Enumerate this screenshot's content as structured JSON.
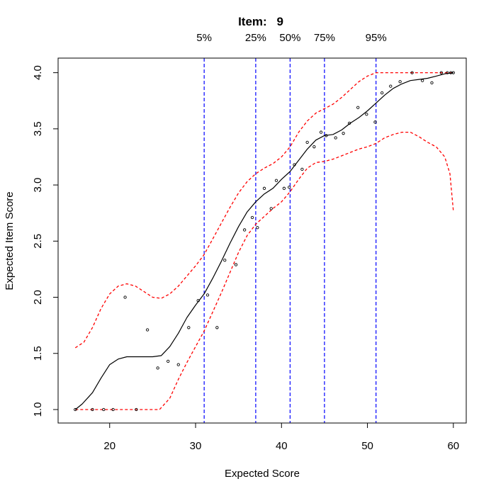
{
  "chart_data": {
    "type": "line",
    "title_prefix": "Item:",
    "title_value": "9",
    "xlabel": "Expected Score",
    "ylabel": "Expected Item Score",
    "xlim": [
      14.0,
      61.5
    ],
    "ylim": [
      0.88,
      4.13
    ],
    "x_ticks": [
      20,
      30,
      40,
      50,
      60
    ],
    "y_ticks": [
      1.0,
      1.5,
      2.0,
      2.5,
      3.0,
      3.5,
      4.0
    ],
    "y_tick_labels": [
      "1.0",
      "1.5",
      "2.0",
      "2.5",
      "3.0",
      "3.5",
      "4.0"
    ],
    "grid": false,
    "percentiles": [
      {
        "label": "5%",
        "x": 31
      },
      {
        "label": "25%",
        "x": 37
      },
      {
        "label": "50%",
        "x": 41
      },
      {
        "label": "75%",
        "x": 45
      },
      {
        "label": "95%",
        "x": 51
      }
    ],
    "colors": {
      "fit": "#000000",
      "band": "#ff0000",
      "percentile": "#0000ff",
      "points": "#000000"
    },
    "series": [
      {
        "role": "fit",
        "style": "solid",
        "x": [
          16,
          16.8,
          18,
          19,
          20,
          21,
          22,
          23,
          24,
          25,
          26,
          27,
          28,
          29,
          30,
          31,
          32,
          33,
          34,
          35,
          36,
          37,
          38,
          39,
          40,
          41,
          42,
          43,
          44,
          45,
          46,
          47,
          48,
          49,
          50,
          51,
          52,
          53,
          54,
          55,
          56,
          57,
          58,
          59,
          60
        ],
        "y": [
          1.0,
          1.05,
          1.15,
          1.28,
          1.4,
          1.45,
          1.47,
          1.47,
          1.47,
          1.47,
          1.48,
          1.56,
          1.68,
          1.82,
          1.93,
          2.03,
          2.17,
          2.32,
          2.48,
          2.63,
          2.76,
          2.85,
          2.92,
          2.97,
          3.05,
          3.12,
          3.22,
          3.32,
          3.4,
          3.44,
          3.45,
          3.49,
          3.55,
          3.6,
          3.66,
          3.73,
          3.8,
          3.86,
          3.9,
          3.93,
          3.94,
          3.95,
          3.97,
          3.99,
          4.0
        ]
      },
      {
        "role": "upper-band",
        "style": "dashed",
        "x": [
          16,
          17,
          18,
          19,
          20,
          21,
          22,
          23,
          24,
          25,
          26,
          27,
          28,
          29,
          30,
          31,
          32,
          33,
          34,
          35,
          36,
          37,
          38,
          39,
          40,
          41,
          42,
          43,
          44,
          45,
          46,
          47,
          48,
          49,
          50,
          51,
          52,
          53,
          54,
          55,
          56,
          57,
          58,
          59,
          60
        ],
        "y": [
          1.55,
          1.6,
          1.73,
          1.9,
          2.03,
          2.1,
          2.12,
          2.1,
          2.05,
          2.0,
          1.99,
          2.03,
          2.1,
          2.19,
          2.28,
          2.38,
          2.52,
          2.66,
          2.8,
          2.93,
          3.03,
          3.1,
          3.15,
          3.19,
          3.25,
          3.34,
          3.47,
          3.57,
          3.64,
          3.68,
          3.72,
          3.78,
          3.85,
          3.92,
          3.97,
          4.0,
          4.0,
          4.0,
          4.0,
          4.0,
          4.0,
          4.0,
          4.0,
          4.0,
          4.0
        ]
      },
      {
        "role": "lower-band",
        "style": "dashed",
        "x": [
          16,
          18,
          20,
          22,
          24,
          25.8,
          27,
          28,
          29,
          30,
          31,
          32,
          33,
          34,
          35,
          36,
          37,
          38,
          39,
          40,
          41,
          42,
          43,
          44,
          45,
          46,
          47,
          48,
          49,
          50,
          51,
          52,
          53,
          54,
          55,
          56,
          57,
          58,
          59,
          59.6,
          60
        ],
        "y": [
          1.0,
          1.0,
          1.0,
          1.0,
          1.0,
          1.0,
          1.1,
          1.27,
          1.42,
          1.56,
          1.7,
          1.87,
          2.04,
          2.22,
          2.4,
          2.55,
          2.65,
          2.72,
          2.79,
          2.85,
          2.94,
          3.05,
          3.15,
          3.2,
          3.21,
          3.23,
          3.26,
          3.29,
          3.32,
          3.34,
          3.37,
          3.42,
          3.45,
          3.47,
          3.47,
          3.43,
          3.38,
          3.34,
          3.25,
          3.1,
          2.77
        ]
      }
    ],
    "points": {
      "x": [
        16,
        18,
        19.3,
        20.4,
        21.8,
        23.1,
        24.4,
        25.6,
        26.8,
        28,
        29.2,
        30.3,
        31.4,
        32.5,
        33.4,
        34.7,
        35.7,
        36.6,
        37.2,
        38,
        38.8,
        39.4,
        40.3,
        40.9,
        41.5,
        42.4,
        43,
        43.8,
        44.6,
        45.2,
        46.3,
        47.2,
        47.9,
        48.9,
        49.9,
        50.9,
        51.7,
        52.7,
        53.8,
        55.2,
        56.4,
        57.5,
        58.6,
        59.3,
        59.7,
        60
      ],
      "y": [
        1.0,
        1.0,
        1.0,
        1.0,
        2.0,
        1.0,
        1.71,
        1.37,
        1.43,
        1.4,
        1.73,
        1.97,
        2.02,
        1.73,
        2.33,
        2.29,
        2.6,
        2.71,
        2.62,
        2.97,
        2.79,
        3.04,
        2.97,
        2.98,
        3.18,
        3.14,
        3.38,
        3.34,
        3.47,
        3.44,
        3.42,
        3.46,
        3.55,
        3.69,
        3.63,
        3.56,
        3.82,
        3.88,
        3.92,
        4.0,
        3.93,
        3.91,
        4.0,
        4.0,
        4.0,
        4.0
      ]
    }
  }
}
